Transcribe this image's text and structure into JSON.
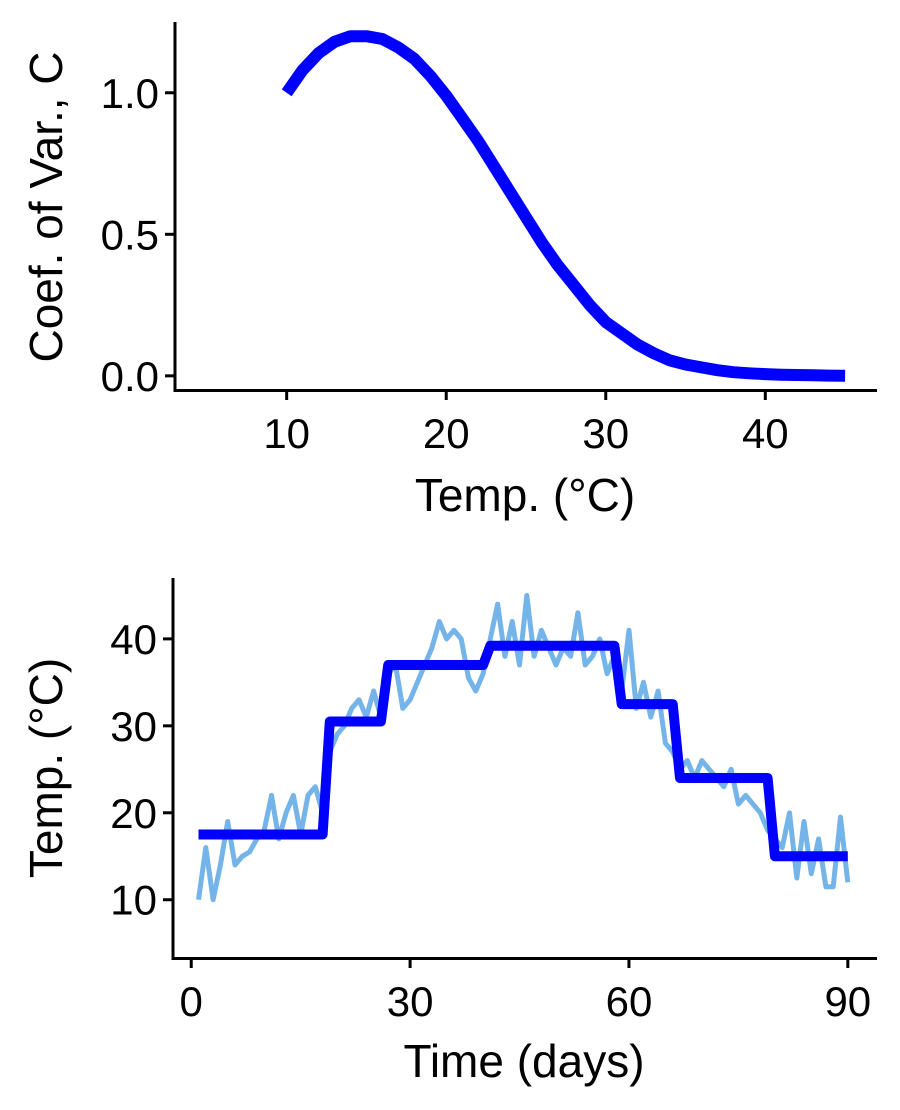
{
  "chart_data": [
    {
      "type": "line",
      "xlabel": "Temp. (°C)",
      "ylabel": "Coef. of Var., C",
      "xlim": [
        3,
        47
      ],
      "ylim": [
        -0.05,
        1.25
      ],
      "xticks": [
        10,
        20,
        30,
        40
      ],
      "yticks": [
        0.0,
        0.5,
        1.0
      ],
      "ytick_labels": [
        "0.0",
        "0.5",
        "1.0"
      ],
      "grid": false,
      "series": [
        {
          "color": "#0000ff",
          "x": [
            10,
            11,
            12,
            13,
            14,
            15,
            16,
            17,
            18,
            19,
            20,
            21,
            22,
            23,
            24,
            25,
            26,
            27,
            28,
            29,
            30,
            31,
            32,
            33,
            34,
            35,
            36,
            37,
            38,
            39,
            40,
            41,
            42,
            43,
            44,
            45
          ],
          "y": [
            1.0,
            1.08,
            1.14,
            1.18,
            1.2,
            1.2,
            1.19,
            1.16,
            1.12,
            1.06,
            0.99,
            0.91,
            0.83,
            0.74,
            0.65,
            0.56,
            0.47,
            0.39,
            0.32,
            0.25,
            0.19,
            0.15,
            0.11,
            0.08,
            0.055,
            0.04,
            0.03,
            0.02,
            0.013,
            0.009,
            0.006,
            0.004,
            0.003,
            0.002,
            0.001,
            0.0
          ]
        }
      ]
    },
    {
      "type": "line",
      "xlabel": "Time (days)",
      "ylabel": "Temp. (°C)",
      "xlim": [
        -2.5,
        94
      ],
      "ylim": [
        3.3,
        47
      ],
      "xticks": [
        0,
        30,
        60,
        90
      ],
      "yticks": [
        10,
        20,
        30,
        40
      ],
      "grid": false,
      "series": [
        {
          "color": "#74b4e8",
          "x": [
            1,
            2,
            3,
            4,
            5,
            6,
            7,
            8,
            9,
            10,
            11,
            12,
            13,
            14,
            15,
            16,
            17,
            18,
            19,
            20,
            21,
            22,
            23,
            24,
            25,
            26,
            27,
            28,
            29,
            30,
            31,
            32,
            33,
            34,
            35,
            36,
            37,
            38,
            39,
            40,
            41,
            42,
            43,
            44,
            45,
            46,
            47,
            48,
            49,
            50,
            51,
            52,
            53,
            54,
            55,
            56,
            57,
            58,
            59,
            60,
            61,
            62,
            63,
            64,
            65,
            66,
            67,
            68,
            69,
            70,
            71,
            72,
            73,
            74,
            75,
            76,
            77,
            78,
            79,
            80,
            81,
            82,
            83,
            84,
            85,
            86,
            87,
            88,
            89,
            90
          ],
          "y": [
            10,
            16,
            10,
            14,
            19,
            14,
            15,
            15.5,
            17,
            18,
            22,
            17,
            20,
            22,
            17.5,
            22,
            23,
            20,
            27,
            29,
            30,
            32,
            33,
            31,
            34,
            31,
            36,
            37,
            32,
            33,
            35,
            37,
            39,
            42,
            40,
            41,
            40,
            35.5,
            34,
            36,
            40,
            44,
            38,
            42,
            37,
            45,
            38,
            41,
            39,
            37,
            39,
            38,
            43,
            37,
            38,
            40,
            36,
            38,
            34,
            41,
            32,
            35,
            31,
            34,
            28,
            27,
            25,
            26,
            24,
            26,
            25,
            24,
            23,
            25,
            21,
            22,
            21,
            20,
            18,
            17,
            16,
            20,
            12.5,
            19,
            13,
            17,
            11.5,
            11.5,
            19.5,
            12
          ]
        },
        {
          "color": "#0000ff",
          "x": [
            1,
            18,
            18,
            19,
            19,
            26,
            26,
            27,
            27,
            40,
            40,
            41,
            41,
            58,
            58,
            59,
            59,
            66,
            66,
            67,
            67,
            79,
            79,
            80,
            80,
            90
          ],
          "y": [
            17.5,
            17.5,
            17.5,
            30.5,
            30.5,
            30.5,
            30.5,
            37,
            37,
            37,
            37,
            39.2,
            39.2,
            39.2,
            39.2,
            32.5,
            32.5,
            32.5,
            32.5,
            24,
            24,
            24,
            24,
            15,
            15,
            15
          ]
        }
      ]
    }
  ]
}
